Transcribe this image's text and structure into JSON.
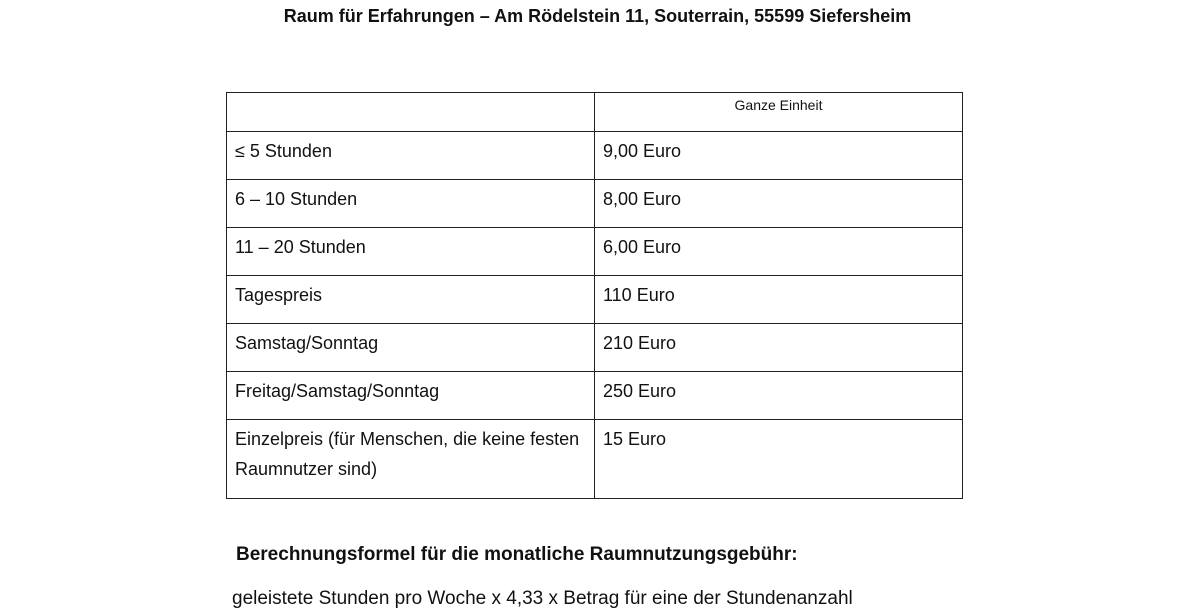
{
  "title": "Raum für Erfahrungen – Am Rödelstein 11, Souterrain, 55599 Siefersheim",
  "table": {
    "header": [
      "",
      "Ganze Einheit"
    ],
    "rows": [
      [
        "≤ 5 Stunden",
        "9,00 Euro"
      ],
      [
        "6 – 10 Stunden",
        "8,00 Euro"
      ],
      [
        "11 – 20 Stunden",
        "6,00 Euro"
      ],
      [
        "Tagespreis",
        "110 Euro"
      ],
      [
        "Samstag/Sonntag",
        "210 Euro"
      ],
      [
        "Freitag/Samstag/Sonntag",
        "250 Euro"
      ],
      [
        "Einzelpreis (für Menschen, die keine festen Raumnutzer sind)",
        "15 Euro"
      ]
    ]
  },
  "section": {
    "heading": "Berechnungsformel für die monatliche Raumnutzungsgebühr:",
    "text": "geleistete Stunden pro Woche x 4,33 x Betrag für eine der Stundenanzahl"
  }
}
